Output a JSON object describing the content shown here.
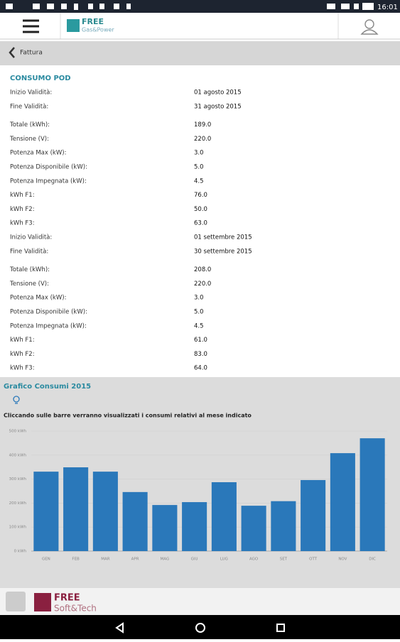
{
  "status_bar": {
    "time": "16:01"
  },
  "header": {
    "logo_title": "FREE",
    "logo_subtitle": "Gas&Power"
  },
  "back_bar": {
    "label": "Fattura"
  },
  "consumo": {
    "title": "CONSUMO POD",
    "rows": [
      [
        "Inizio Validità:",
        "01 agosto 2015"
      ],
      [
        "Fine Validità:",
        "31 agosto 2015"
      ],
      [
        "Totale (kWh):",
        "189.0"
      ],
      [
        "Tensione (V):",
        "220.0"
      ],
      [
        "Potenza Max (kW):",
        "3.0"
      ],
      [
        "Potenza Disponibile (kW):",
        "5.0"
      ],
      [
        "Potenza Impegnata (kW):",
        "4.5"
      ],
      [
        "kWh F1:",
        "76.0"
      ],
      [
        "kWh F2:",
        "50.0"
      ],
      [
        "kWh F3:",
        "63.0"
      ],
      [
        "Inizio Validità:",
        "01 settembre 2015"
      ],
      [
        "Fine Validità:",
        "30 settembre 2015"
      ],
      [
        "Totale (kWh):",
        "208.0"
      ],
      [
        "Tensione (V):",
        "220.0"
      ],
      [
        "Potenza Max (kW):",
        "3.0"
      ],
      [
        "Potenza Disponibile (kW):",
        "5.0"
      ],
      [
        "Potenza Impegnata (kW):",
        "4.5"
      ],
      [
        "kWh F1:",
        "61.0"
      ],
      [
        "kWh F2:",
        "83.0"
      ],
      [
        "kWh F3:",
        "64.0"
      ]
    ]
  },
  "chart_data": {
    "type": "bar",
    "title": "Grafico Consumi 2015",
    "subtitle": "Cliccando sulle barre verranno visualizzati i consumi relativi al mese indicato",
    "categories": [
      "GEN",
      "FEB",
      "MAR",
      "APR",
      "MAG",
      "GIU",
      "LUG",
      "AGO",
      "SET",
      "OTT",
      "NOV",
      "DIC"
    ],
    "values": [
      331,
      349,
      331,
      246,
      192,
      204,
      287,
      189,
      208,
      296,
      408,
      470
    ],
    "color": "#2a78ba",
    "ylim": [
      0,
      500
    ],
    "yticks": [
      {
        "value": 0,
        "label": "0 kWh"
      },
      {
        "value": 100,
        "label": "100 kWh"
      },
      {
        "value": 200,
        "label": "200 kWh"
      },
      {
        "value": 300,
        "label": "300 kWh"
      },
      {
        "value": 400,
        "label": "400 kWh"
      },
      {
        "value": 500,
        "label": "500 kWh"
      }
    ],
    "grid": true
  },
  "footer": {
    "logo_title": "FREE",
    "logo_subtitle": "Soft&Tech"
  }
}
